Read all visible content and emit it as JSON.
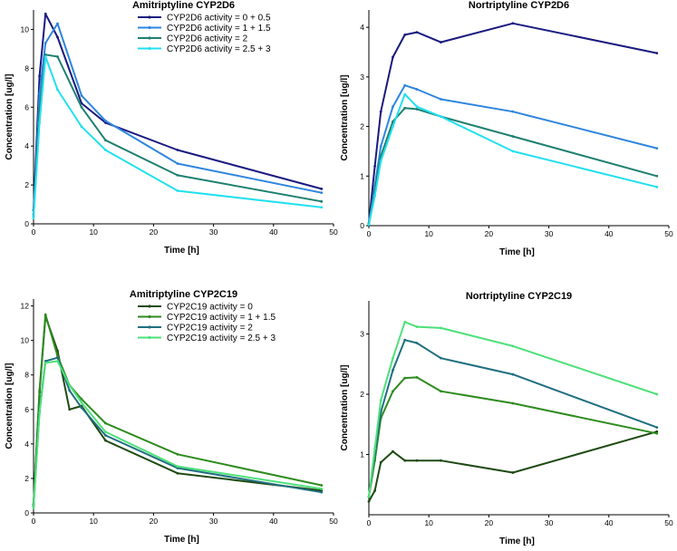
{
  "chart_data": [
    {
      "type": "line",
      "title": "Amitriptyline CYP2D6",
      "xlabel": "Time [h]",
      "ylabel": "Concentration [ug/l]",
      "xlim": [
        0,
        50
      ],
      "ylim": [
        0,
        11
      ],
      "xticks": [
        0,
        10,
        20,
        30,
        40,
        50
      ],
      "yticks": [
        0,
        2,
        4,
        6,
        8,
        10
      ],
      "legend": "top-right",
      "series": [
        {
          "name": "CYP2D6 activity = 0 + 0.5",
          "color": "#1a1a80",
          "x": [
            0,
            1,
            2,
            4,
            8,
            12,
            24,
            48
          ],
          "y": [
            0.7,
            7.6,
            10.8,
            9.6,
            6.2,
            5.2,
            3.8,
            1.8
          ]
        },
        {
          "name": "CYP2D6 activity = 1 + 1.5",
          "color": "#2e86de",
          "x": [
            0,
            1,
            2,
            4,
            8,
            12,
            24,
            48
          ],
          "y": [
            0.5,
            6.7,
            9.3,
            10.3,
            6.6,
            5.3,
            3.1,
            1.6
          ]
        },
        {
          "name": "CYP2D6 activity = 2",
          "color": "#1e8070",
          "x": [
            0,
            1,
            2,
            4,
            8,
            12,
            24,
            48
          ],
          "y": [
            0.4,
            5.8,
            8.7,
            8.6,
            6.0,
            4.3,
            2.5,
            1.15
          ]
        },
        {
          "name": "CYP2D6 activity = 2.5 + 3",
          "color": "#22e0ee",
          "x": [
            0,
            1,
            2,
            4,
            8,
            12,
            24,
            48
          ],
          "y": [
            0.3,
            5.2,
            8.6,
            6.9,
            5.0,
            3.8,
            1.7,
            0.85
          ]
        }
      ]
    },
    {
      "type": "line",
      "title": "Nortriptyline CYP2D6",
      "xlabel": "Time [h]",
      "ylabel": "Concentration [ug/l]",
      "xlim": [
        0,
        50
      ],
      "ylim": [
        0,
        4.35
      ],
      "xticks": [
        0,
        10,
        20,
        30,
        40,
        50
      ],
      "yticks": [
        0,
        1,
        2,
        3,
        4
      ],
      "series": [
        {
          "name": "CYP2D6 activity = 0 + 0.5",
          "color": "#1a1a80",
          "x": [
            0,
            1,
            2,
            4,
            6,
            8,
            12,
            24,
            48
          ],
          "y": [
            0.05,
            1.2,
            2.3,
            3.4,
            3.85,
            3.9,
            3.7,
            4.08,
            3.48
          ]
        },
        {
          "name": "CYP2D6 activity = 1 + 1.5",
          "color": "#2e86de",
          "x": [
            0,
            1,
            2,
            4,
            6,
            8,
            12,
            24,
            48
          ],
          "y": [
            0.04,
            0.8,
            1.6,
            2.4,
            2.83,
            2.75,
            2.55,
            2.3,
            1.56
          ]
        },
        {
          "name": "CYP2D6 activity = 2",
          "color": "#1e8070",
          "x": [
            0,
            1,
            2,
            4,
            6,
            8,
            12,
            24,
            48
          ],
          "y": [
            0.03,
            0.7,
            1.4,
            2.1,
            2.37,
            2.35,
            2.2,
            1.8,
            1.0
          ]
        },
        {
          "name": "CYP2D6 activity = 2.5 + 3",
          "color": "#22e0ee",
          "x": [
            0,
            1,
            2,
            4,
            6,
            8,
            12,
            24,
            48
          ],
          "y": [
            0.02,
            0.6,
            1.3,
            2.0,
            2.65,
            2.4,
            2.2,
            1.5,
            0.78
          ]
        }
      ]
    },
    {
      "type": "line",
      "title": "Amitriptyline CYP2C19",
      "xlabel": "Time [h]",
      "ylabel": "Concentration [ug/l]",
      "xlim": [
        0,
        50
      ],
      "ylim": [
        0,
        12.4
      ],
      "xticks": [
        0,
        10,
        20,
        30,
        40,
        50
      ],
      "yticks": [
        0,
        2,
        4,
        6,
        8,
        10,
        12
      ],
      "legend": "top-right",
      "series": [
        {
          "name": "CYP2C19 activity = 0",
          "color": "#1f4a12",
          "x": [
            0,
            1,
            2,
            4,
            6,
            8,
            12,
            24,
            48
          ],
          "y": [
            0.5,
            7.0,
            11.4,
            9.4,
            6.0,
            6.2,
            4.2,
            2.3,
            1.3
          ]
        },
        {
          "name": "CYP2C19 activity = 1 + 1.5",
          "color": "#2e8b1f",
          "x": [
            0,
            1,
            2,
            4,
            6,
            8,
            12,
            24,
            48
          ],
          "y": [
            0.5,
            7.1,
            11.5,
            9.1,
            7.4,
            6.6,
            5.2,
            3.4,
            1.6
          ]
        },
        {
          "name": "CYP2C19 activity = 2",
          "color": "#1f6f80",
          "x": [
            0,
            1,
            2,
            4,
            6,
            8,
            12,
            24,
            48
          ],
          "y": [
            0.4,
            5.9,
            8.8,
            9.0,
            7.1,
            6.1,
            4.5,
            2.6,
            1.2
          ]
        },
        {
          "name": "CYP2C19 activity = 2.5 + 3",
          "color": "#4ee07a",
          "x": [
            0,
            1,
            2,
            4,
            6,
            8,
            12,
            24,
            48
          ],
          "y": [
            0.3,
            5.8,
            8.7,
            8.8,
            7.4,
            6.4,
            4.7,
            2.7,
            1.4
          ]
        }
      ]
    },
    {
      "type": "line",
      "title": "Nortriptyline CYP2C19",
      "xlabel": "Time [h]",
      "ylabel": "Concentration [ug/l]",
      "xlim": [
        0,
        50
      ],
      "ylim": [
        0,
        3.55
      ],
      "xticks": [
        0,
        10,
        20,
        30,
        40,
        50
      ],
      "yticks": [
        1,
        2,
        3
      ],
      "series": [
        {
          "name": "CYP2C19 activity = 0",
          "color": "#1f4a12",
          "x": [
            0,
            1,
            2,
            4,
            6,
            8,
            12,
            24,
            48
          ],
          "y": [
            0.22,
            0.4,
            0.87,
            1.05,
            0.9,
            0.9,
            0.9,
            0.7,
            1.38
          ]
        },
        {
          "name": "CYP2C19 activity = 1 + 1.5",
          "color": "#2e8b1f",
          "x": [
            0,
            1,
            2,
            4,
            6,
            8,
            12,
            24,
            48
          ],
          "y": [
            0.3,
            0.9,
            1.6,
            2.05,
            2.27,
            2.28,
            2.05,
            1.85,
            1.35
          ]
        },
        {
          "name": "CYP2C19 activity = 2",
          "color": "#1f6f80",
          "x": [
            0,
            1,
            2,
            4,
            6,
            8,
            12,
            24,
            48
          ],
          "y": [
            0.3,
            1.0,
            1.7,
            2.4,
            2.9,
            2.85,
            2.6,
            2.33,
            1.45
          ]
        },
        {
          "name": "CYP2C19 activity = 2.5 + 3",
          "color": "#4ee07a",
          "x": [
            0,
            1,
            2,
            4,
            6,
            8,
            12,
            24,
            48
          ],
          "y": [
            0.3,
            1.1,
            1.9,
            2.6,
            3.2,
            3.12,
            3.1,
            2.8,
            2.0
          ]
        }
      ]
    }
  ]
}
